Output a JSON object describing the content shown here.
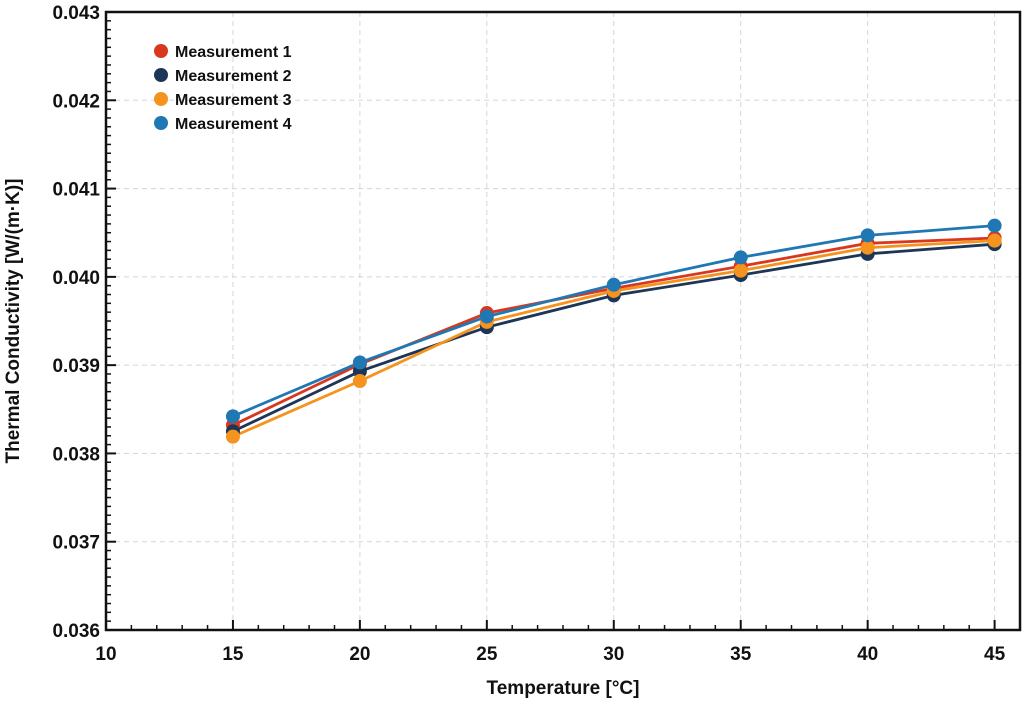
{
  "chart_data": {
    "type": "line",
    "title": "",
    "xlabel": "Temperature [°C]",
    "ylabel": "Thermal Conductivity [W/(m·K)]",
    "xlim": [
      10,
      46
    ],
    "ylim": [
      0.036,
      0.043
    ],
    "x_ticks": [
      "10",
      "15",
      "20",
      "25",
      "30",
      "35",
      "40",
      "45"
    ],
    "y_ticks": [
      "0.036",
      "0.037",
      "0.038",
      "0.039",
      "0.040",
      "0.041",
      "0.042",
      "0.043"
    ],
    "grid": true,
    "legend_position": "top-left",
    "x": [
      15,
      20,
      25,
      30,
      35,
      40,
      45
    ],
    "series": [
      {
        "name": "Measurement 1",
        "color": "#d9381e",
        "values": [
          0.03832,
          0.03901,
          0.03959,
          0.03987,
          0.04012,
          0.04038,
          0.04044
        ]
      },
      {
        "name": "Measurement 2",
        "color": "#1d3557",
        "values": [
          0.03825,
          0.03893,
          0.03943,
          0.03979,
          0.04002,
          0.04026,
          0.04037
        ]
      },
      {
        "name": "Measurement 3",
        "color": "#f4941e",
        "values": [
          0.03819,
          0.03882,
          0.03949,
          0.03984,
          0.04007,
          0.04033,
          0.04041
        ]
      },
      {
        "name": "Measurement 4",
        "color": "#1f77b4",
        "values": [
          0.03842,
          0.03903,
          0.03955,
          0.03991,
          0.04022,
          0.04047,
          0.04058
        ]
      }
    ]
  }
}
